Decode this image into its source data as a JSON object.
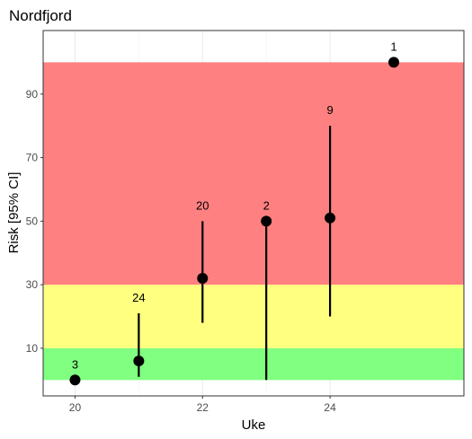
{
  "chart_data": {
    "type": "scatter",
    "title": "Nordfjord",
    "xlabel": "Uke",
    "ylabel": "Risk [95% CI]",
    "x_ticks": [
      20,
      22,
      24
    ],
    "y_ticks": [
      10,
      30,
      50,
      70,
      90
    ],
    "xlim": [
      19.5,
      26.1
    ],
    "ylim": [
      -5,
      110
    ],
    "grid": true,
    "bands": [
      {
        "from": 0,
        "to": 10,
        "color": "#80ff80"
      },
      {
        "from": 10,
        "to": 30,
        "color": "#ffff80"
      },
      {
        "from": 30,
        "to": 100,
        "color": "#ff8080"
      }
    ],
    "points": [
      {
        "x": 20,
        "y": 0,
        "lower": 0,
        "upper": 0,
        "label": "3"
      },
      {
        "x": 21,
        "y": 6,
        "lower": 1,
        "upper": 21,
        "label": "24"
      },
      {
        "x": 22,
        "y": 32,
        "lower": 18,
        "upper": 50,
        "label": "20"
      },
      {
        "x": 23,
        "y": 50,
        "lower": 0,
        "upper": 50,
        "label": "2"
      },
      {
        "x": 24,
        "y": 51,
        "lower": 20,
        "upper": 80,
        "label": "9"
      },
      {
        "x": 25,
        "y": 100,
        "lower": 100,
        "upper": 100,
        "label": "1"
      }
    ]
  }
}
